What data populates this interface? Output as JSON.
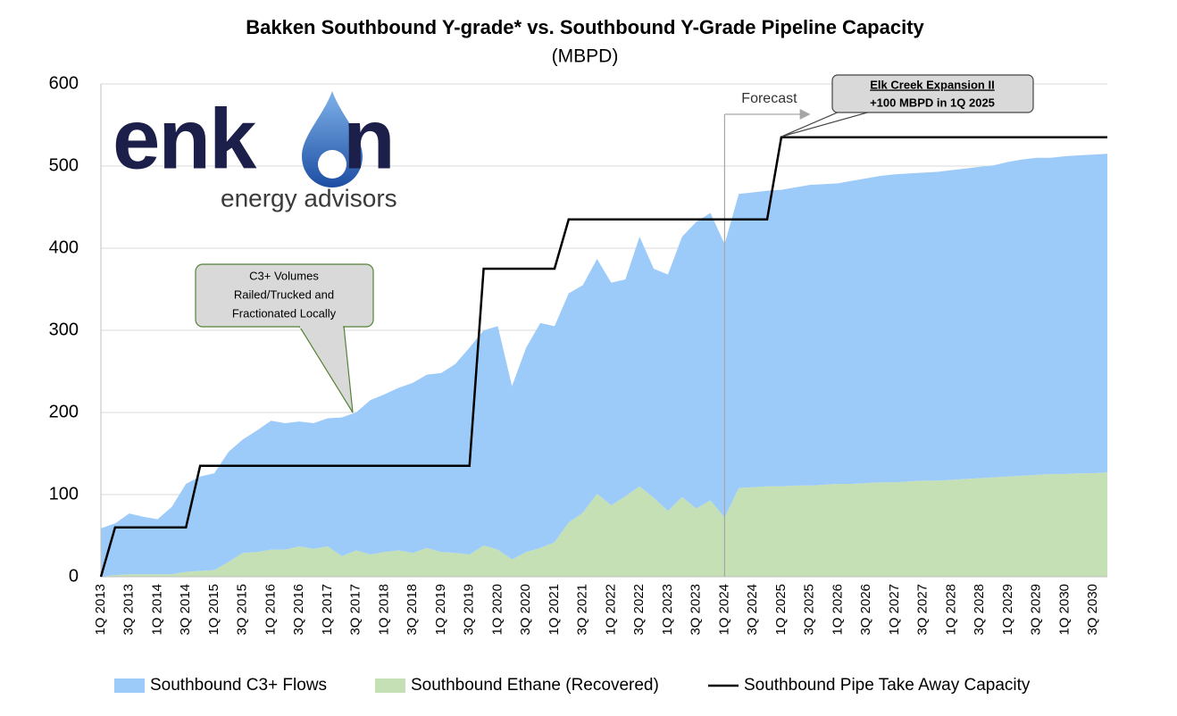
{
  "chart_data": {
    "type": "area",
    "stacked": true,
    "title": "Bakken Southbound Y-grade* vs. Southbound Y-Grade Pipeline Capacity",
    "subtitle": "(MBPD)",
    "ylim": [
      0,
      600
    ],
    "yticks": [
      0,
      100,
      200,
      300,
      400,
      500,
      600
    ],
    "grid": true,
    "categories": [
      "1Q 2013",
      null,
      "3Q 2013",
      null,
      "1Q 2014",
      null,
      "3Q 2014",
      null,
      "1Q 2015",
      null,
      "3Q 2015",
      null,
      "1Q 2016",
      null,
      "3Q 2016",
      null,
      "1Q 2017",
      null,
      "3Q 2017",
      null,
      "1Q 2018",
      null,
      "3Q 2018",
      null,
      "1Q 2019",
      null,
      "3Q 2019",
      null,
      "1Q 2020",
      null,
      "3Q 2020",
      null,
      "1Q 2021",
      null,
      "3Q 2021",
      null,
      "1Q 2022",
      null,
      "3Q 2022",
      null,
      "1Q 2023",
      null,
      "3Q 2023",
      null,
      "1Q 2024",
      null,
      "3Q 2024",
      null,
      "1Q 2025",
      null,
      "3Q 2025",
      null,
      "1Q 2026",
      null,
      "3Q 2026",
      null,
      "1Q 2027",
      null,
      "3Q 2027",
      null,
      "1Q 2028",
      null,
      "3Q 2028",
      null,
      "1Q 2029",
      null,
      "3Q 2029",
      null,
      "1Q 2030",
      null,
      "3Q 2030",
      null
    ],
    "series": [
      {
        "name": "Southbound Ethane (Recovered)",
        "color": "#c5e0b4",
        "type": "area",
        "values": [
          0,
          2,
          3,
          3,
          3,
          3,
          6,
          7,
          8,
          18,
          29,
          30,
          33,
          33,
          37,
          34,
          37,
          25,
          32,
          27,
          30,
          32,
          29,
          35,
          30,
          29,
          27,
          38,
          33,
          21,
          30,
          35,
          42,
          66,
          78,
          101,
          87,
          98,
          110,
          96,
          80,
          97,
          83,
          93,
          72,
          108,
          109,
          110,
          110,
          111,
          111,
          112,
          113,
          113,
          114,
          115,
          115,
          116,
          117,
          117,
          118,
          119,
          120,
          121,
          122,
          123,
          124,
          125,
          125,
          126,
          126,
          127
        ]
      },
      {
        "name": "Southbound C3+ Flows",
        "color": "#9dcbf9",
        "type": "area",
        "values": [
          59,
          63,
          74,
          70,
          67,
          82,
          107,
          115,
          118,
          134,
          138,
          148,
          157,
          154,
          152,
          153,
          156,
          169,
          168,
          188,
          192,
          198,
          207,
          211,
          218,
          230,
          252,
          262,
          272,
          211,
          249,
          274,
          263,
          279,
          277,
          286,
          271,
          264,
          304,
          279,
          288,
          317,
          349,
          350,
          333,
          358,
          359,
          360,
          361,
          363,
          366,
          366,
          366,
          369,
          371,
          373,
          375,
          375,
          375,
          376,
          377,
          378,
          379,
          380,
          383,
          385,
          386,
          385,
          387,
          387,
          388,
          388
        ]
      },
      {
        "name": "Southbound Pipe Take Away Capacity",
        "color": "#000000",
        "type": "line",
        "values": [
          0,
          60,
          60,
          60,
          60,
          60,
          60,
          135,
          135,
          135,
          135,
          135,
          135,
          135,
          135,
          135,
          135,
          135,
          135,
          135,
          135,
          135,
          135,
          135,
          135,
          135,
          135,
          375,
          375,
          375,
          375,
          375,
          375,
          435,
          435,
          435,
          435,
          435,
          435,
          435,
          435,
          435,
          435,
          435,
          435,
          435,
          435,
          435,
          535,
          535,
          535,
          535,
          535,
          535,
          535,
          535,
          535,
          535,
          535,
          535,
          535,
          535,
          535,
          535,
          535,
          535,
          535,
          535,
          535,
          535,
          535,
          535
        ]
      }
    ],
    "legend_order": [
      1,
      0,
      2
    ],
    "forecast": {
      "label": "Forecast",
      "at": "1Q 2024"
    },
    "callouts": [
      {
        "lines": [
          "Elk Creek Expansion II",
          "+100 MBPD in 1Q 2025"
        ]
      },
      {
        "lines": [
          "C3+ Volumes",
          "Railed/Trucked and",
          "Fractionated Locally"
        ]
      }
    ]
  },
  "logo": {
    "left": "enk",
    "right": "n",
    "tagline": "energy advisors"
  }
}
